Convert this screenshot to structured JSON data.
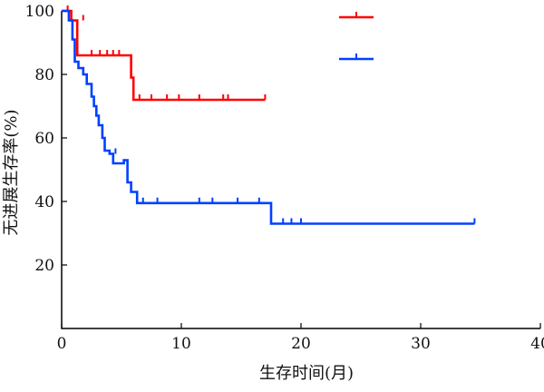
{
  "chart_data": {
    "type": "line",
    "title": "",
    "xlabel": "生存时间(月)",
    "ylabel": "无进展生存率(%)",
    "xlim": [
      0,
      40
    ],
    "ylim": [
      0,
      100
    ],
    "xticks": [
      0,
      10,
      20,
      30,
      40
    ],
    "yticks": [
      20,
      40,
      60,
      80,
      100
    ],
    "x_tick_labels": [
      "0",
      "10",
      "20",
      "30",
      "40"
    ],
    "y_tick_labels": [
      "20",
      "40",
      "60",
      "80",
      "100"
    ],
    "grid": false,
    "legend": "top-right",
    "curve_style": "step",
    "series": [
      {
        "name": "",
        "color": "#ff0000",
        "points": [
          [
            0,
            100
          ],
          [
            0.8,
            100
          ],
          [
            0.8,
            97
          ],
          [
            1.3,
            97
          ],
          [
            1.3,
            86
          ],
          [
            5.8,
            86
          ],
          [
            5.8,
            79
          ],
          [
            6.0,
            79
          ],
          [
            6.0,
            72
          ],
          [
            17.0,
            72
          ]
        ],
        "censored": [
          [
            0.5,
            100
          ],
          [
            1.8,
            97
          ],
          [
            2.5,
            86
          ],
          [
            3.2,
            86
          ],
          [
            3.8,
            86
          ],
          [
            4.3,
            86
          ],
          [
            4.8,
            86
          ],
          [
            6.5,
            72
          ],
          [
            7.5,
            72
          ],
          [
            8.8,
            72
          ],
          [
            9.8,
            72
          ],
          [
            11.5,
            72
          ],
          [
            13.5,
            72
          ],
          [
            13.9,
            72
          ],
          [
            17.0,
            72
          ]
        ]
      },
      {
        "name": "",
        "color": "#0040ff",
        "points": [
          [
            0,
            100
          ],
          [
            0.6,
            100
          ],
          [
            0.6,
            97
          ],
          [
            0.9,
            97
          ],
          [
            0.9,
            91
          ],
          [
            1.1,
            91
          ],
          [
            1.1,
            84
          ],
          [
            1.4,
            84
          ],
          [
            1.4,
            82
          ],
          [
            1.8,
            82
          ],
          [
            1.8,
            80
          ],
          [
            2.1,
            80
          ],
          [
            2.1,
            77
          ],
          [
            2.5,
            77
          ],
          [
            2.5,
            73
          ],
          [
            2.7,
            73
          ],
          [
            2.7,
            70
          ],
          [
            2.9,
            70
          ],
          [
            2.9,
            67
          ],
          [
            3.1,
            67
          ],
          [
            3.1,
            64
          ],
          [
            3.4,
            64
          ],
          [
            3.4,
            60
          ],
          [
            3.6,
            60
          ],
          [
            3.6,
            56
          ],
          [
            4.0,
            56
          ],
          [
            4.0,
            55
          ],
          [
            4.3,
            55
          ],
          [
            4.3,
            52
          ],
          [
            5.2,
            52
          ],
          [
            5.2,
            53
          ],
          [
            5.5,
            53
          ],
          [
            5.5,
            46
          ],
          [
            5.8,
            46
          ],
          [
            5.8,
            43
          ],
          [
            6.3,
            43
          ],
          [
            6.3,
            39.5
          ],
          [
            17.5,
            39.5
          ],
          [
            17.5,
            33
          ],
          [
            34.5,
            33
          ]
        ],
        "censored": [
          [
            4.5,
            55
          ],
          [
            6.8,
            39.5
          ],
          [
            8.0,
            39.5
          ],
          [
            11.5,
            39.5
          ],
          [
            12.6,
            39.5
          ],
          [
            14.7,
            39.5
          ],
          [
            16.5,
            39.5
          ],
          [
            18.5,
            33
          ],
          [
            19.2,
            33
          ],
          [
            20.0,
            33
          ],
          [
            34.5,
            33
          ]
        ]
      }
    ]
  }
}
